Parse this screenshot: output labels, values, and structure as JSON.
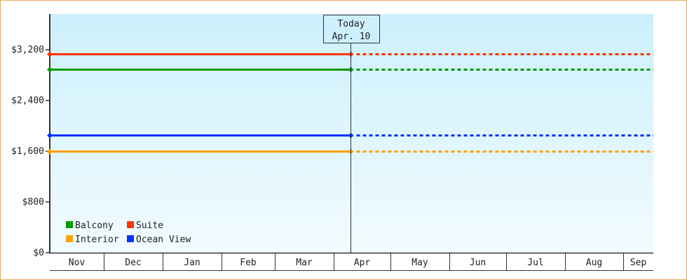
{
  "chart_data": {
    "type": "line",
    "yaxis": {
      "min": 0,
      "max": 3600,
      "ticks": [
        0,
        800,
        1600,
        2400,
        3200
      ],
      "tick_labels": [
        "$0",
        "$800",
        "$1,600",
        "$2,400",
        "$3,200"
      ]
    },
    "xaxis": {
      "months": [
        "Nov",
        "Dec",
        "Jan",
        "Feb",
        "Mar",
        "Apr",
        "May",
        "Jun",
        "Jul",
        "Aug",
        "Sep"
      ]
    },
    "today_marker": {
      "line1": "Today",
      "line2": "Apr. 10"
    },
    "grid": false,
    "legend_placement": "bottom-left",
    "note": "",
    "series": [
      {
        "name": "Balcony",
        "color": "#009900",
        "value": 2890
      },
      {
        "name": "Suite",
        "color": "#ff3300",
        "value": 3130
      },
      {
        "name": "Interior",
        "color": "#ffa000",
        "value": 1600
      },
      {
        "name": "Ocean View",
        "color": "#0033ff",
        "value": 1850
      }
    ],
    "style": {
      "solid_until": "today",
      "dashed_after": "today"
    },
    "background": {
      "top": "#ccf0fc",
      "bottom": "#f2fbff"
    }
  }
}
